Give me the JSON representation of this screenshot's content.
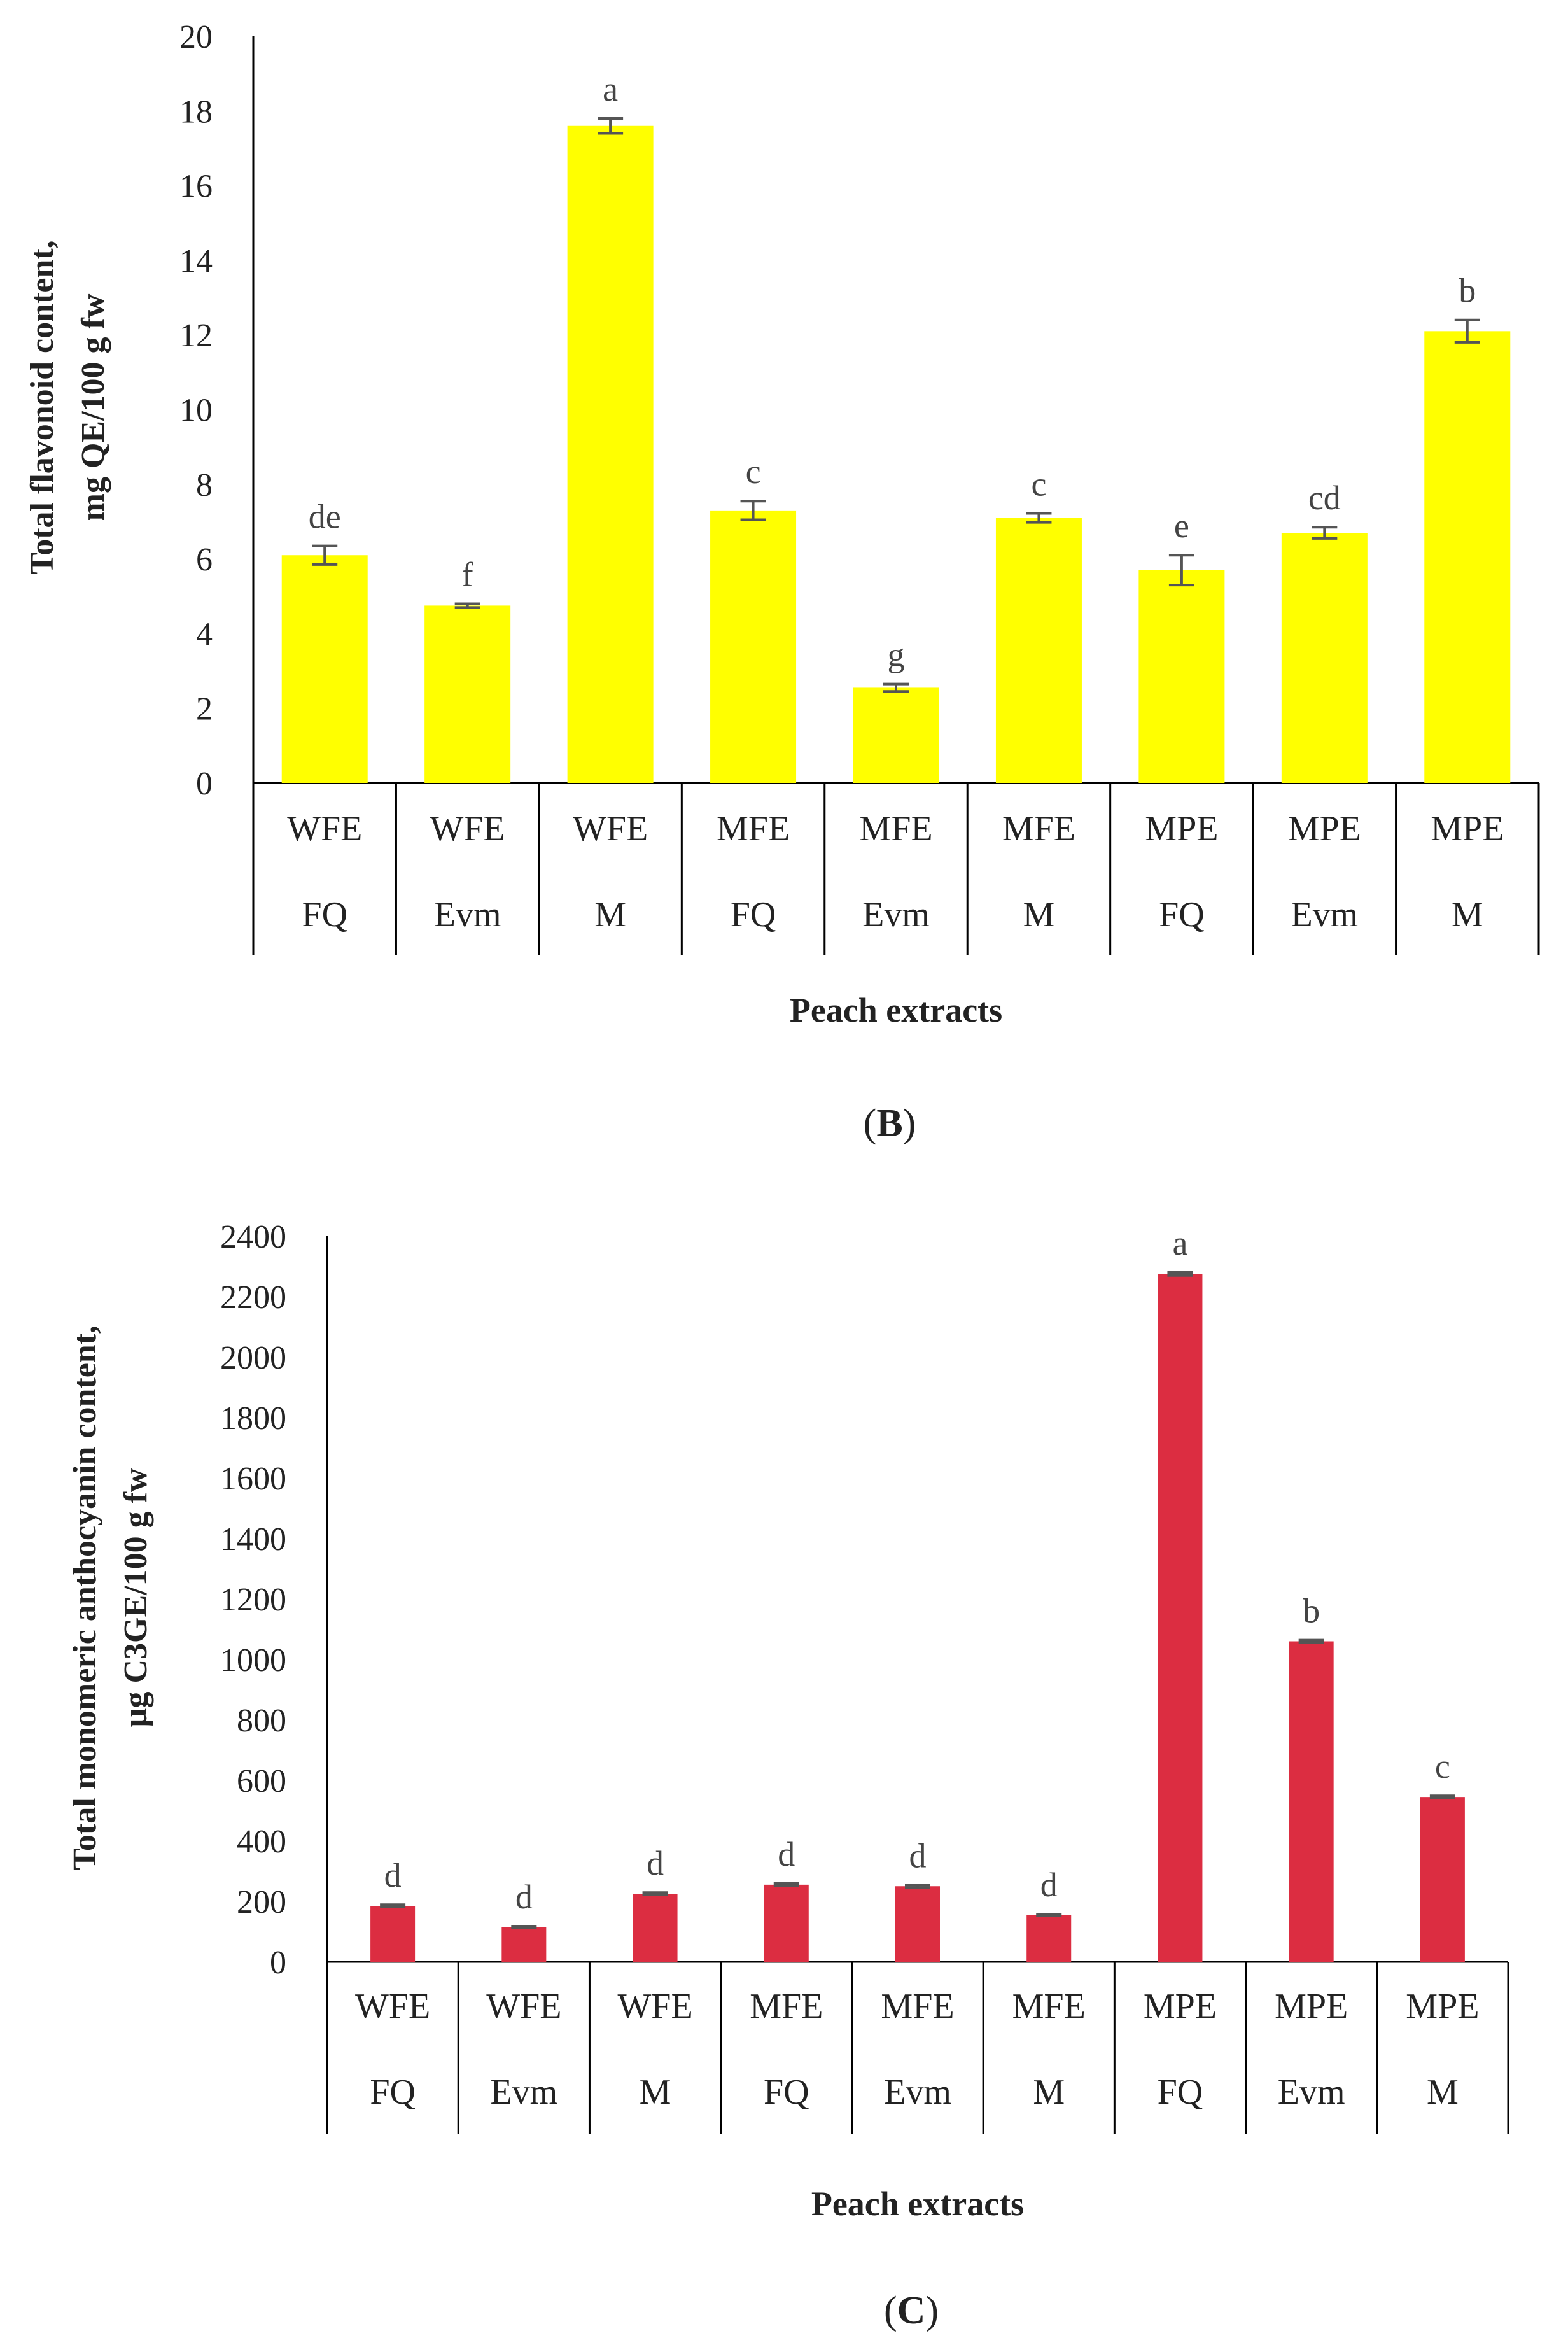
{
  "chart_data": [
    {
      "panel": "B",
      "type": "bar",
      "title": "",
      "xlabel": "Peach extracts",
      "ylabel_lines": [
        "Total flavonoid content,",
        "mg QE/100 g fw"
      ],
      "ylim": [
        0,
        20
      ],
      "yticks": [
        0,
        2,
        4,
        6,
        8,
        10,
        12,
        14,
        16,
        18,
        20
      ],
      "grid": false,
      "bar_color": "#FFFF00",
      "categories": [
        {
          "line1": "WFE",
          "line2": "FQ"
        },
        {
          "line1": "WFE",
          "line2": "Evm"
        },
        {
          "line1": "WFE",
          "line2": "M"
        },
        {
          "line1": "MFE",
          "line2": "FQ"
        },
        {
          "line1": "MFE",
          "line2": "Evm"
        },
        {
          "line1": "MFE",
          "line2": "M"
        },
        {
          "line1": "MPE",
          "line2": "FQ"
        },
        {
          "line1": "MPE",
          "line2": "Evm"
        },
        {
          "line1": "MPE",
          "line2": "M"
        }
      ],
      "values": [
        6.1,
        4.75,
        17.6,
        7.3,
        2.55,
        7.1,
        5.7,
        6.7,
        12.1
      ],
      "errors": [
        0.25,
        0.05,
        0.2,
        0.25,
        0.1,
        0.12,
        0.4,
        0.15,
        0.3
      ],
      "significance": [
        "de",
        "f",
        "a",
        "c",
        "g",
        "c",
        "e",
        "cd",
        "b"
      ],
      "panel_label_prefix": "(",
      "panel_label_letter": "B",
      "panel_label_suffix": ")"
    },
    {
      "panel": "C",
      "type": "bar",
      "title": "",
      "xlabel": "Peach extracts",
      "ylabel_lines": [
        "Total monomeric anthocyanin content,",
        "µg C3GE/100 g fw"
      ],
      "ylim": [
        0,
        2400
      ],
      "yticks": [
        0,
        200,
        400,
        600,
        800,
        1000,
        1200,
        1400,
        1600,
        1800,
        2000,
        2200,
        2400
      ],
      "grid": false,
      "bar_color": "#DC2D41",
      "categories": [
        {
          "line1": "WFE",
          "line2": "FQ"
        },
        {
          "line1": "WFE",
          "line2": "Evm"
        },
        {
          "line1": "WFE",
          "line2": "M"
        },
        {
          "line1": "MFE",
          "line2": "FQ"
        },
        {
          "line1": "MFE",
          "line2": "Evm"
        },
        {
          "line1": "MFE",
          "line2": "M"
        },
        {
          "line1": "MPE",
          "line2": "FQ"
        },
        {
          "line1": "MPE",
          "line2": "Evm"
        },
        {
          "line1": "MPE",
          "line2": "M"
        }
      ],
      "values": [
        185,
        115,
        225,
        255,
        250,
        155,
        2275,
        1060,
        545
      ],
      "errors": [
        4,
        3,
        4,
        4,
        4,
        3,
        5,
        4,
        4
      ],
      "significance": [
        "d",
        "d",
        "d",
        "d",
        "d",
        "d",
        "a",
        "b",
        "c"
      ],
      "panel_label_prefix": "(",
      "panel_label_letter": "C",
      "panel_label_suffix": ")"
    }
  ]
}
